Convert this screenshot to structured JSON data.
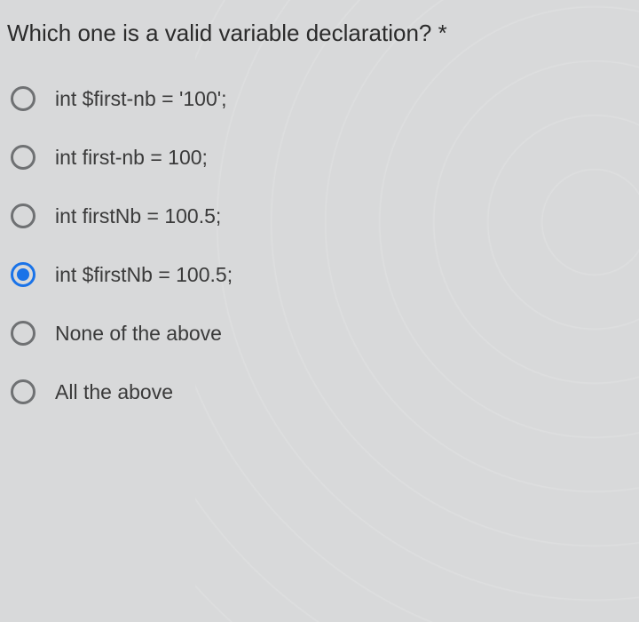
{
  "question": {
    "text": "Which one is a valid variable declaration? *",
    "required_marker": "*",
    "options": [
      {
        "label": "int $first-nb = '100';",
        "selected": false
      },
      {
        "label": "int first-nb = 100;",
        "selected": false
      },
      {
        "label": "int firstNb = 100.5;",
        "selected": false
      },
      {
        "label": "int $firstNb = 100.5;",
        "selected": true
      },
      {
        "label": "None of the above",
        "selected": false
      },
      {
        "label": "All the above",
        "selected": false
      }
    ]
  },
  "styling": {
    "background_color": "#d8d9da",
    "text_color": "#2b2b2b",
    "option_text_color": "#3a3a3a",
    "radio_border_color": "#6f7173",
    "radio_selected_color": "#1a73e8",
    "question_fontsize": 26,
    "option_fontsize": 23,
    "option_gap": 38,
    "radio_size": 28,
    "radio_dot_size": 14
  }
}
